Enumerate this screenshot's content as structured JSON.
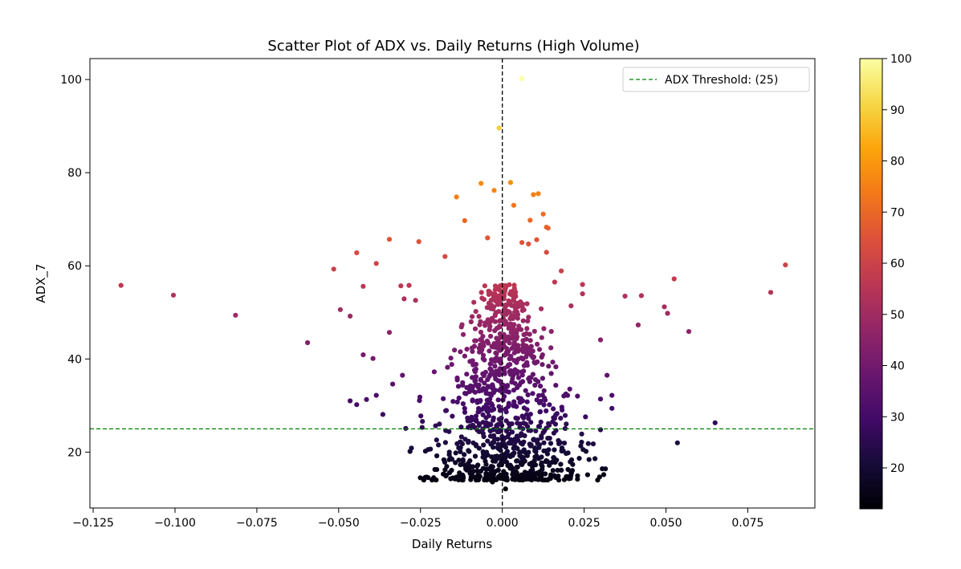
{
  "chart_data": {
    "type": "scatter",
    "title": "Scatter Plot of ADX vs. Daily Returns (High Volume)",
    "xlabel": "Daily Returns",
    "ylabel": "ADX_7",
    "xlim": [
      -0.126,
      0.0955
    ],
    "ylim": [
      8,
      104.5
    ],
    "xticks": [
      -0.125,
      -0.1,
      -0.075,
      -0.05,
      -0.025,
      0.0,
      0.025,
      0.05,
      0.075
    ],
    "xtick_labels": [
      "−0.125",
      "−0.100",
      "−0.075",
      "−0.050",
      "−0.025",
      "0.000",
      "0.025",
      "0.050",
      "0.075"
    ],
    "yticks": [
      20,
      40,
      60,
      80,
      100
    ],
    "ytick_labels": [
      "20",
      "40",
      "60",
      "80",
      "100"
    ],
    "grid": false,
    "colormap": "inferno",
    "color_range": [
      12,
      100
    ],
    "colorbar_ticks": [
      20,
      30,
      40,
      50,
      60,
      70,
      80,
      90,
      100
    ],
    "colorbar_tick_labels": [
      "20",
      "30",
      "40",
      "50",
      "60",
      "70",
      "80",
      "90",
      "100"
    ],
    "vertical_line": {
      "x": 0.0,
      "color": "#000000",
      "style": "dashed"
    },
    "threshold_line": {
      "y": 25,
      "color": "#008000",
      "style": "dashed",
      "label": "ADX Threshold: (25)"
    },
    "legend_position": "top-right",
    "points": [
      [
        -0.1165,
        55.8
      ],
      [
        -0.1005,
        53.7
      ],
      [
        -0.0815,
        49.4
      ],
      [
        -0.0595,
        43.5
      ],
      [
        -0.0515,
        59.3
      ],
      [
        -0.0495,
        50.6
      ],
      [
        -0.0445,
        62.8
      ],
      [
        -0.0425,
        55.6
      ],
      [
        -0.0465,
        49.2
      ],
      [
        -0.0385,
        60.5
      ],
      [
        -0.0345,
        65.7
      ],
      [
        -0.0255,
        65.2
      ],
      [
        -0.0175,
        62.0
      ],
      [
        -0.014,
        74.8
      ],
      [
        -0.0115,
        69.7
      ],
      [
        -0.0065,
        77.7
      ],
      [
        -0.0025,
        76.2
      ],
      [
        -0.001,
        89.6
      ],
      [
        0.0025,
        77.9
      ],
      [
        0.006,
        100.2
      ],
      [
        0.0085,
        69.8
      ],
      [
        0.0095,
        75.3
      ],
      [
        0.011,
        75.5
      ],
      [
        0.0125,
        71.1
      ],
      [
        0.0135,
        68.3
      ],
      [
        0.014,
        68.1
      ],
      [
        0.0035,
        73.0
      ],
      [
        0.006,
        65.0
      ],
      [
        0.0105,
        65.6
      ],
      [
        -0.0045,
        66.0
      ],
      [
        0.0135,
        62.9
      ],
      [
        0.008,
        64.7
      ],
      [
        -0.0425,
        40.9
      ],
      [
        -0.0395,
        40.1
      ],
      [
        -0.0345,
        45.7
      ],
      [
        -0.031,
        55.7
      ],
      [
        -0.03,
        52.9
      ],
      [
        -0.0285,
        55.8
      ],
      [
        -0.0265,
        52.6
      ],
      [
        -0.0445,
        30.2
      ],
      [
        -0.0465,
        31.0
      ],
      [
        -0.0415,
        31.3
      ],
      [
        -0.0385,
        32.2
      ],
      [
        -0.0365,
        28.1
      ],
      [
        -0.0335,
        34.6
      ],
      [
        -0.0305,
        36.5
      ],
      [
        -0.0295,
        25.1
      ],
      [
        -0.0245,
        25.3
      ],
      [
        -0.0235,
        20.2
      ],
      [
        -0.02,
        19.2
      ],
      [
        -0.0155,
        16.1
      ],
      [
        -0.012,
        14.8
      ],
      [
        -0.008,
        14.0
      ],
      [
        -0.003,
        13.6
      ],
      [
        0.001,
        12.1
      ],
      [
        0.0065,
        14.8
      ],
      [
        0.023,
        14.9
      ],
      [
        0.0265,
        18.4
      ],
      [
        0.03,
        24.8
      ],
      [
        0.03,
        31.4
      ],
      [
        0.032,
        36.5
      ],
      [
        0.0335,
        29.4
      ],
      [
        0.0335,
        32.2
      ],
      [
        0.03,
        44.1
      ],
      [
        0.0245,
        54.0
      ],
      [
        0.0245,
        56.0
      ],
      [
        0.021,
        51.4
      ],
      [
        0.0375,
        53.5
      ],
      [
        0.0415,
        47.3
      ],
      [
        0.0425,
        53.6
      ],
      [
        0.0495,
        51.2
      ],
      [
        0.0505,
        49.8
      ],
      [
        0.0525,
        57.2
      ],
      [
        0.057,
        45.9
      ],
      [
        0.065,
        26.3
      ],
      [
        0.0535,
        22.0
      ],
      [
        0.082,
        54.3
      ],
      [
        0.0865,
        60.2
      ],
      [
        0.018,
        58.9
      ],
      [
        0.016,
        56.5
      ]
    ]
  }
}
